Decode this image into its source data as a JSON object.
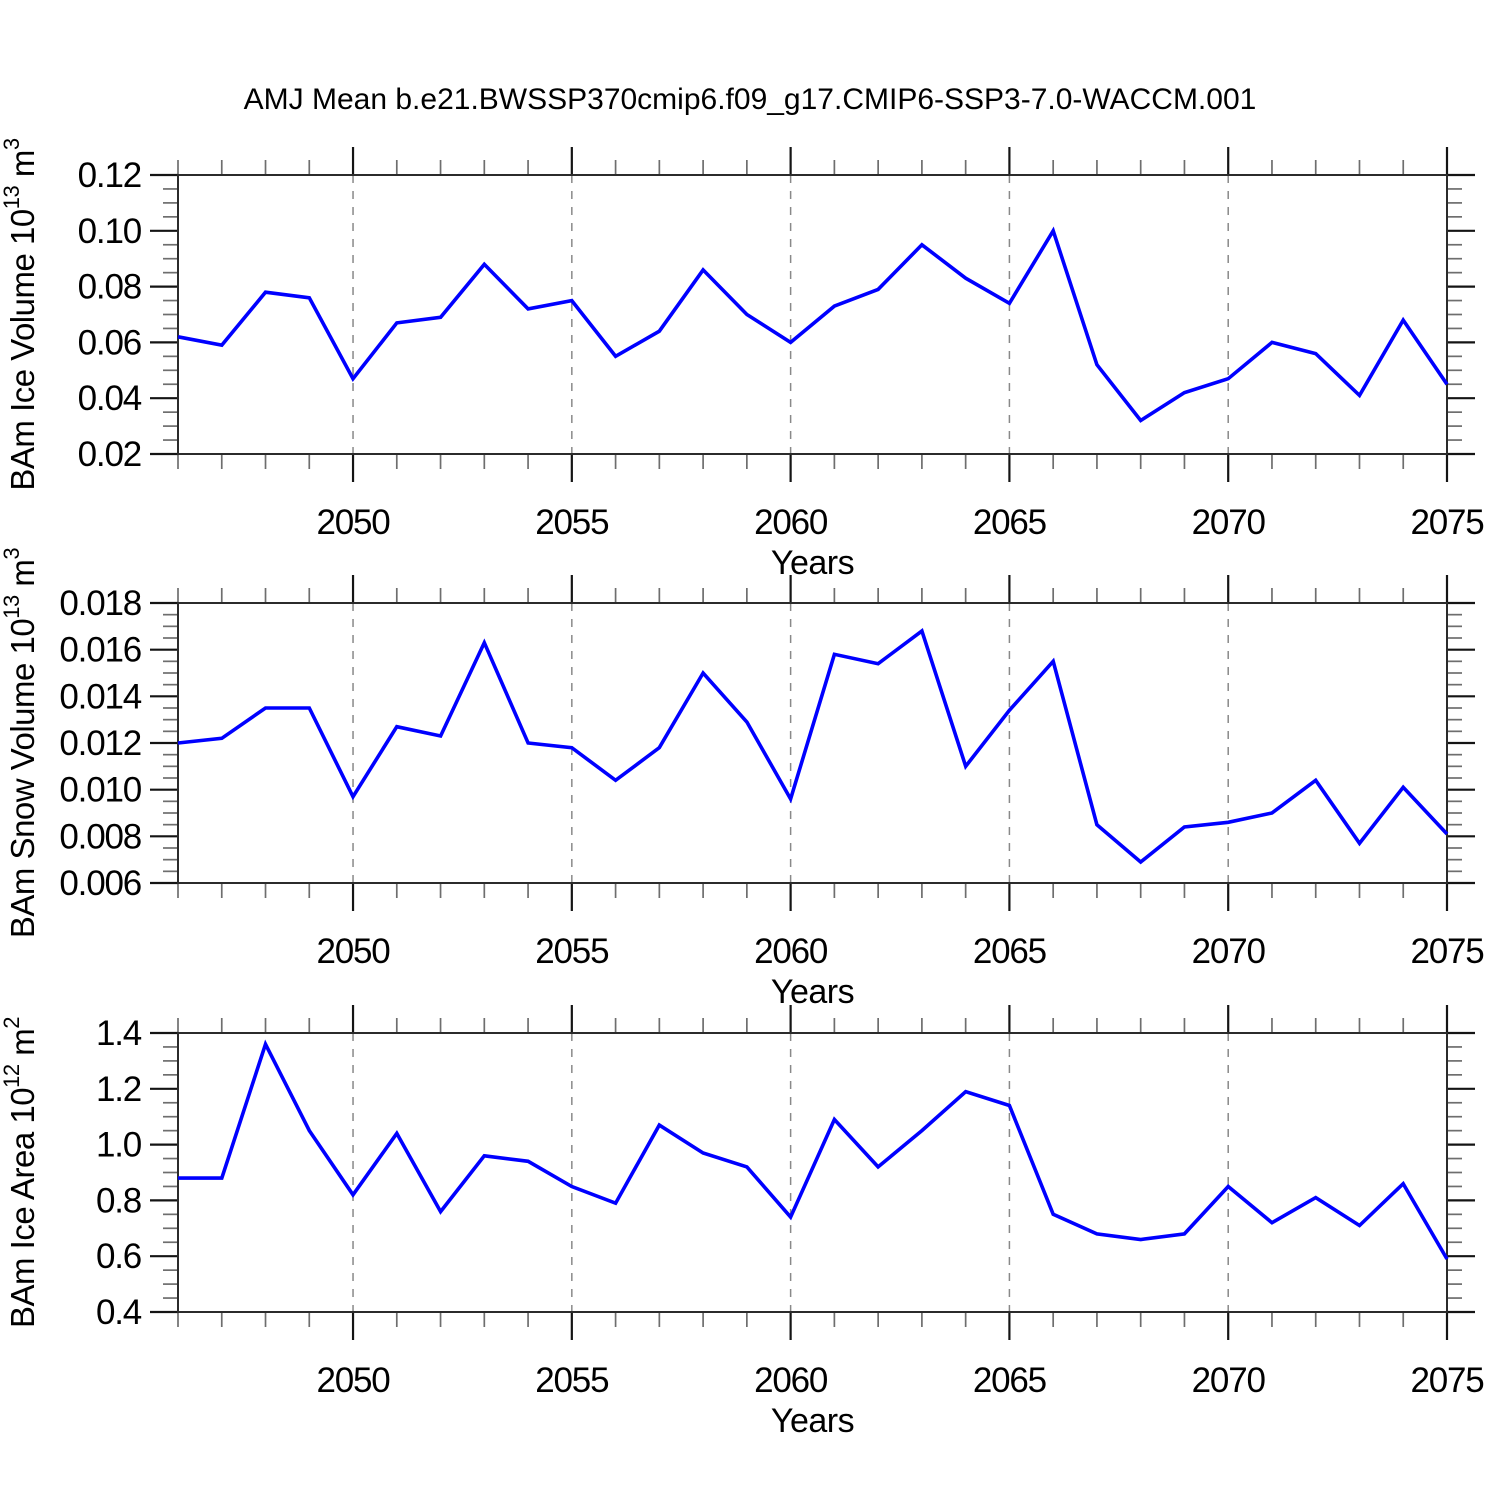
{
  "title": "AMJ Mean b.e21.BWSSP370cmip6.f09_g17.CMIP6-SSP3-7.0-WACCM.001",
  "line_color": "#0000ff",
  "chart_data": [
    {
      "id": "ice-volume",
      "type": "line",
      "ylabel": "BAm Ice Volume 10^13 m^3",
      "ylabel_parts": [
        {
          "text": "BAm Ice Volume 10"
        },
        {
          "text": "13",
          "sup": true
        },
        {
          "text": " m"
        },
        {
          "text": "3",
          "sup": true
        }
      ],
      "xlabel": "Years",
      "xlim": [
        2046,
        2075
      ],
      "xticks": [
        2050,
        2055,
        2060,
        2065,
        2070,
        2075
      ],
      "xtick_labels": [
        "2050",
        "2055",
        "2060",
        "2065",
        "2070",
        "2075"
      ],
      "x_minor_step": 1,
      "grid_x": [
        2050,
        2055,
        2060,
        2065,
        2070
      ],
      "ylim": [
        0.02,
        0.12
      ],
      "yticks": [
        0.02,
        0.04,
        0.06,
        0.08,
        0.1,
        0.12
      ],
      "ytick_labels": [
        "0.02",
        "0.04",
        "0.06",
        "0.08",
        "0.10",
        "0.12"
      ],
      "y_minor_step": 0.005,
      "line_color": "#0000ff",
      "x": [
        2046,
        2047,
        2048,
        2049,
        2050,
        2051,
        2052,
        2053,
        2054,
        2055,
        2056,
        2057,
        2058,
        2059,
        2060,
        2061,
        2062,
        2063,
        2064,
        2065,
        2066,
        2067,
        2068,
        2069,
        2070,
        2071,
        2072,
        2073,
        2074,
        2075
      ],
      "values": [
        0.062,
        0.059,
        0.078,
        0.076,
        0.047,
        0.067,
        0.069,
        0.088,
        0.072,
        0.075,
        0.055,
        0.064,
        0.086,
        0.07,
        0.06,
        0.073,
        0.079,
        0.095,
        0.083,
        0.074,
        0.1,
        0.052,
        0.032,
        0.042,
        0.047,
        0.06,
        0.056,
        0.041,
        0.068,
        0.045
      ]
    },
    {
      "id": "snow-volume",
      "type": "line",
      "ylabel": "BAm Snow Volume 10^13 m^3",
      "ylabel_parts": [
        {
          "text": "BAm Snow Volume 10"
        },
        {
          "text": "13",
          "sup": true
        },
        {
          "text": " m"
        },
        {
          "text": "3",
          "sup": true
        }
      ],
      "xlabel": "Years",
      "xlim": [
        2046,
        2075
      ],
      "xticks": [
        2050,
        2055,
        2060,
        2065,
        2070,
        2075
      ],
      "xtick_labels": [
        "2050",
        "2055",
        "2060",
        "2065",
        "2070",
        "2075"
      ],
      "x_minor_step": 1,
      "grid_x": [
        2050,
        2055,
        2060,
        2065,
        2070
      ],
      "ylim": [
        0.006,
        0.018
      ],
      "yticks": [
        0.006,
        0.008,
        0.01,
        0.012,
        0.014,
        0.016,
        0.018
      ],
      "ytick_labels": [
        "0.006",
        "0.008",
        "0.010",
        "0.012",
        "0.014",
        "0.016",
        "0.018"
      ],
      "y_minor_step": 0.0005,
      "line_color": "#0000ff",
      "x": [
        2046,
        2047,
        2048,
        2049,
        2050,
        2051,
        2052,
        2053,
        2054,
        2055,
        2056,
        2057,
        2058,
        2059,
        2060,
        2061,
        2062,
        2063,
        2064,
        2065,
        2066,
        2067,
        2068,
        2069,
        2070,
        2071,
        2072,
        2073,
        2074,
        2075
      ],
      "values": [
        0.012,
        0.0122,
        0.0135,
        0.0135,
        0.0097,
        0.0127,
        0.0123,
        0.0163,
        0.012,
        0.0118,
        0.0104,
        0.0118,
        0.015,
        0.0129,
        0.0096,
        0.0158,
        0.0154,
        0.0168,
        0.011,
        0.0134,
        0.0155,
        0.0085,
        0.0069,
        0.0084,
        0.0086,
        0.009,
        0.0104,
        0.0077,
        0.0101,
        0.0081
      ]
    },
    {
      "id": "ice-area",
      "type": "line",
      "ylabel": "BAm Ice Area 10^12 m^2",
      "ylabel_parts": [
        {
          "text": "BAm Ice Area 10"
        },
        {
          "text": "12",
          "sup": true
        },
        {
          "text": " m"
        },
        {
          "text": "2",
          "sup": true
        }
      ],
      "xlabel": "Years",
      "xlim": [
        2046,
        2075
      ],
      "xticks": [
        2050,
        2055,
        2060,
        2065,
        2070,
        2075
      ],
      "xtick_labels": [
        "2050",
        "2055",
        "2060",
        "2065",
        "2070",
        "2075"
      ],
      "x_minor_step": 1,
      "grid_x": [
        2050,
        2055,
        2060,
        2065,
        2070
      ],
      "ylim": [
        0.4,
        1.4
      ],
      "yticks": [
        0.4,
        0.6,
        0.8,
        1.0,
        1.2,
        1.4
      ],
      "ytick_labels": [
        "0.4",
        "0.6",
        "0.8",
        "1.0",
        "1.2",
        "1.4"
      ],
      "y_minor_step": 0.05,
      "line_color": "#0000ff",
      "x": [
        2046,
        2047,
        2048,
        2049,
        2050,
        2051,
        2052,
        2053,
        2054,
        2055,
        2056,
        2057,
        2058,
        2059,
        2060,
        2061,
        2062,
        2063,
        2064,
        2065,
        2066,
        2067,
        2068,
        2069,
        2070,
        2071,
        2072,
        2073,
        2074,
        2075
      ],
      "values": [
        0.88,
        0.88,
        1.36,
        1.05,
        0.82,
        1.04,
        0.76,
        0.96,
        0.94,
        0.85,
        0.79,
        1.07,
        0.97,
        0.92,
        0.74,
        1.09,
        0.92,
        1.05,
        1.19,
        1.14,
        0.75,
        0.68,
        0.66,
        0.68,
        0.85,
        0.72,
        0.81,
        0.71,
        0.86,
        0.59
      ]
    }
  ]
}
